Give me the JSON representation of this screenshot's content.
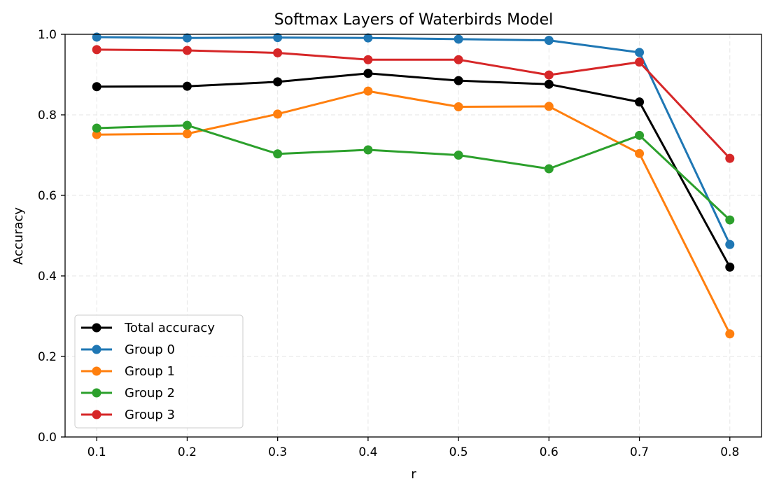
{
  "chart_data": {
    "type": "line",
    "title": "Softmax Layers of Waterbirds Model",
    "xlabel": "r",
    "ylabel": "Accuracy",
    "x": [
      0.1,
      0.2,
      0.3,
      0.4,
      0.5,
      0.6,
      0.7,
      0.8
    ],
    "x_ticks": [
      "0.1",
      "0.2",
      "0.3",
      "0.4",
      "0.5",
      "0.6",
      "0.7",
      "0.8"
    ],
    "ylim": [
      0.0,
      1.0
    ],
    "y_ticks": [
      "0.0",
      "0.2",
      "0.4",
      "0.6",
      "0.8",
      "1.0"
    ],
    "grid": true,
    "legend_position": "lower-left",
    "series": [
      {
        "name": "Total accuracy",
        "color": "#000000",
        "values": [
          0.87,
          0.871,
          0.882,
          0.903,
          0.885,
          0.876,
          0.832,
          0.422
        ]
      },
      {
        "name": "Group 0",
        "color": "#1f77b4",
        "values": [
          0.993,
          0.991,
          0.992,
          0.991,
          0.988,
          0.985,
          0.955,
          0.478
        ]
      },
      {
        "name": "Group 1",
        "color": "#ff7f0e",
        "values": [
          0.751,
          0.753,
          0.802,
          0.859,
          0.82,
          0.821,
          0.704,
          0.256
        ]
      },
      {
        "name": "Group 2",
        "color": "#2ca02c",
        "values": [
          0.767,
          0.774,
          0.703,
          0.713,
          0.7,
          0.666,
          0.749,
          0.539
        ]
      },
      {
        "name": "Group 3",
        "color": "#d62728",
        "values": [
          0.962,
          0.96,
          0.954,
          0.937,
          0.937,
          0.899,
          0.931,
          0.692
        ]
      }
    ]
  }
}
